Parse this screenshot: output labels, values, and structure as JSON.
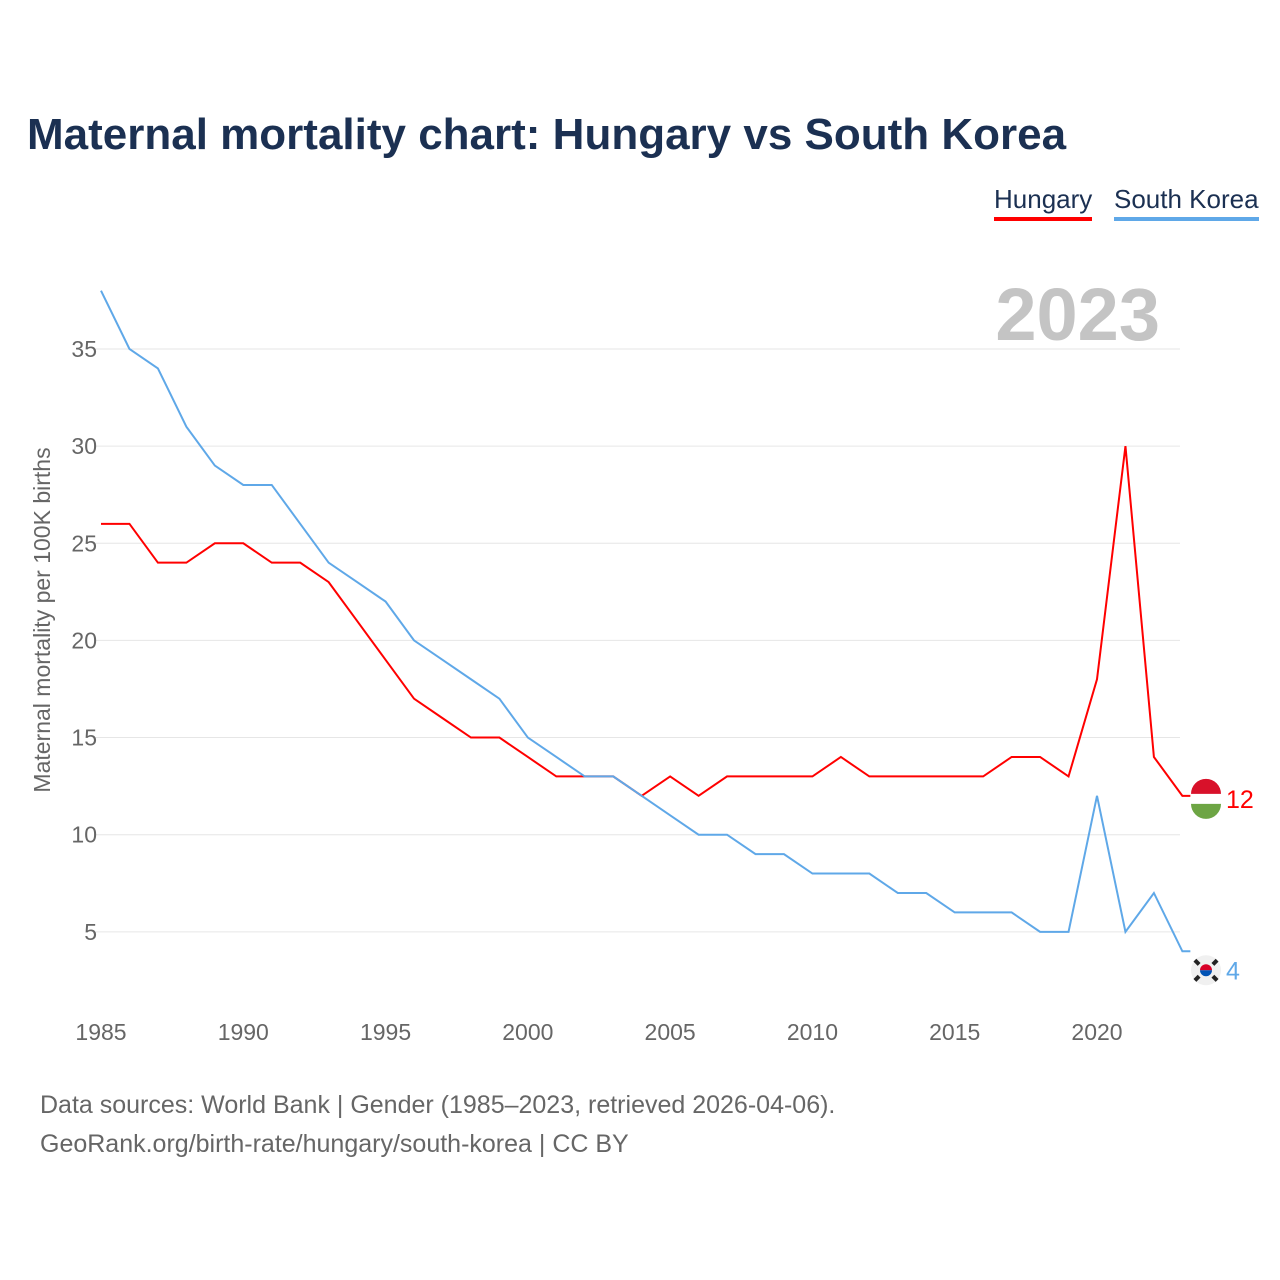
{
  "title": "Maternal mortality chart: Hungary vs South Korea",
  "footer": {
    "line1": "Data sources: World Bank | Gender (1985–2023, retrieved 2026-04-06).",
    "line2": "GeoRank.org/birth-rate/hungary/south-korea | CC BY"
  },
  "chart_data": {
    "type": "line",
    "title": "Maternal mortality chart: Hungary vs South Korea",
    "ylabel": "Maternal mortality per 100K births",
    "xlabel": "",
    "year_label": "2023",
    "xlim": [
      1985,
      2023
    ],
    "ylim": [
      0,
      38
    ],
    "xticks": [
      1985,
      1990,
      1995,
      2000,
      2005,
      2010,
      2015,
      2020
    ],
    "yticks": [
      5,
      10,
      15,
      20,
      25,
      30,
      35
    ],
    "legend": "top-right",
    "x": [
      1985,
      1986,
      1987,
      1988,
      1989,
      1990,
      1991,
      1992,
      1993,
      1994,
      1995,
      1996,
      1997,
      1998,
      1999,
      2000,
      2001,
      2002,
      2003,
      2004,
      2005,
      2006,
      2007,
      2008,
      2009,
      2010,
      2011,
      2012,
      2013,
      2014,
      2015,
      2016,
      2017,
      2018,
      2019,
      2020,
      2021,
      2022,
      2023
    ],
    "series": [
      {
        "name": "Hungary",
        "color": "#ff0000",
        "end_label": "12",
        "values": [
          26,
          26,
          24,
          24,
          25,
          25,
          24,
          24,
          23,
          21,
          19,
          17,
          16,
          15,
          15,
          14,
          13,
          13,
          13,
          12,
          13,
          12,
          13,
          13,
          13,
          13,
          14,
          13,
          13,
          13,
          13,
          13,
          14,
          14,
          13,
          18,
          30,
          14,
          12
        ]
      },
      {
        "name": "South Korea",
        "color": "#5fa8e8",
        "end_label": "4",
        "values": [
          38,
          35,
          34,
          31,
          29,
          28,
          28,
          26,
          24,
          23,
          22,
          20,
          19,
          18,
          17,
          15,
          14,
          13,
          13,
          12,
          11,
          10,
          10,
          9,
          9,
          8,
          8,
          8,
          7,
          7,
          6,
          6,
          6,
          5,
          5,
          12,
          5,
          7,
          4
        ]
      }
    ]
  }
}
